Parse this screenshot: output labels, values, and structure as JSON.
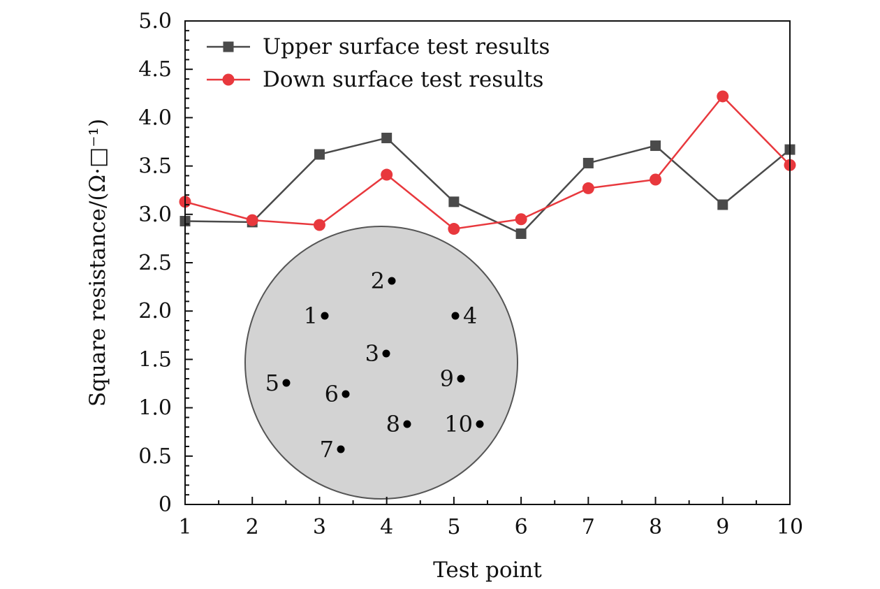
{
  "chart_data": {
    "type": "line",
    "xlabel": "Test point",
    "ylabel": "Square resistance/(Ω·□⁻¹)",
    "x": [
      1,
      2,
      3,
      4,
      5,
      6,
      7,
      8,
      9,
      10
    ],
    "xticks": [
      "1",
      "2",
      "3",
      "4",
      "5",
      "6",
      "7",
      "8",
      "9",
      "10"
    ],
    "xlim": [
      1,
      10
    ],
    "ylim": [
      0,
      5.0
    ],
    "yticks": [
      "0",
      "0.5",
      "1.0",
      "1.5",
      "2.0",
      "2.5",
      "3.0",
      "3.5",
      "4.0",
      "4.5",
      "5.0"
    ],
    "grid": false,
    "legend": "top-left",
    "series": [
      {
        "name": "Upper surface test results",
        "color": "#4a4a4a",
        "marker": "square",
        "values": [
          2.93,
          2.92,
          3.62,
          3.79,
          3.13,
          2.8,
          3.53,
          3.71,
          3.1,
          3.67
        ]
      },
      {
        "name": "Down surface test results",
        "color": "#e8383d",
        "marker": "circle",
        "values": [
          3.13,
          2.94,
          2.89,
          3.41,
          2.85,
          2.95,
          3.27,
          3.36,
          4.22,
          3.51
        ]
      }
    ],
    "inset": {
      "shape": "circle",
      "fill": "#d3d3d3",
      "points": [
        "1",
        "2",
        "3",
        "4",
        "5",
        "6",
        "7",
        "8",
        "9",
        "10"
      ]
    }
  }
}
